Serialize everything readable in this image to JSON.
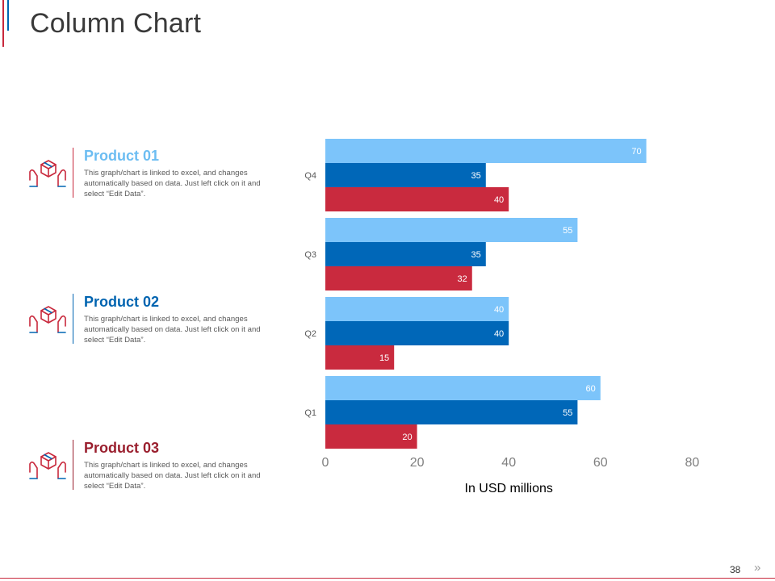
{
  "page": {
    "title": "Column Chart",
    "page_number": "38",
    "next_icon": "double-chevron-right-icon"
  },
  "products": [
    {
      "name": "Product 01",
      "desc": "This graph/chart is linked to excel, and changes automatically based on data. Just left click on it and select “Edit Data”.",
      "color": "#6cbdf2",
      "icon": "package-hands-icon"
    },
    {
      "name": "Product 02",
      "desc": "This graph/chart is linked to excel, and changes automatically based on data. Just left click on it and select “Edit Data”.",
      "color": "#0064b0",
      "icon": "package-hands-icon"
    },
    {
      "name": "Product 03",
      "desc": "This graph/chart is linked to excel, and changes automatically based on data. Just left click on it and select “Edit Data”.",
      "color": "#9a1f2e",
      "icon": "package-hands-icon"
    }
  ],
  "chart_data": {
    "type": "bar",
    "orientation": "horizontal",
    "categories": [
      "Q1",
      "Q2",
      "Q3",
      "Q4"
    ],
    "series": [
      {
        "name": "Product 01",
        "values": [
          60,
          40,
          55,
          70
        ],
        "color": "#7cc4fa"
      },
      {
        "name": "Product 02",
        "values": [
          55,
          40,
          35,
          35
        ],
        "color": "#0067b8"
      },
      {
        "name": "Product 03",
        "values": [
          20,
          15,
          32,
          40
        ],
        "color": "#c92a3e"
      }
    ],
    "xlabel": "In USD millions",
    "ylabel": "",
    "xlim": [
      0,
      80
    ],
    "xticks": [
      0,
      20,
      40,
      60,
      80
    ],
    "data_labels": true,
    "grid": false,
    "legend": "none"
  }
}
